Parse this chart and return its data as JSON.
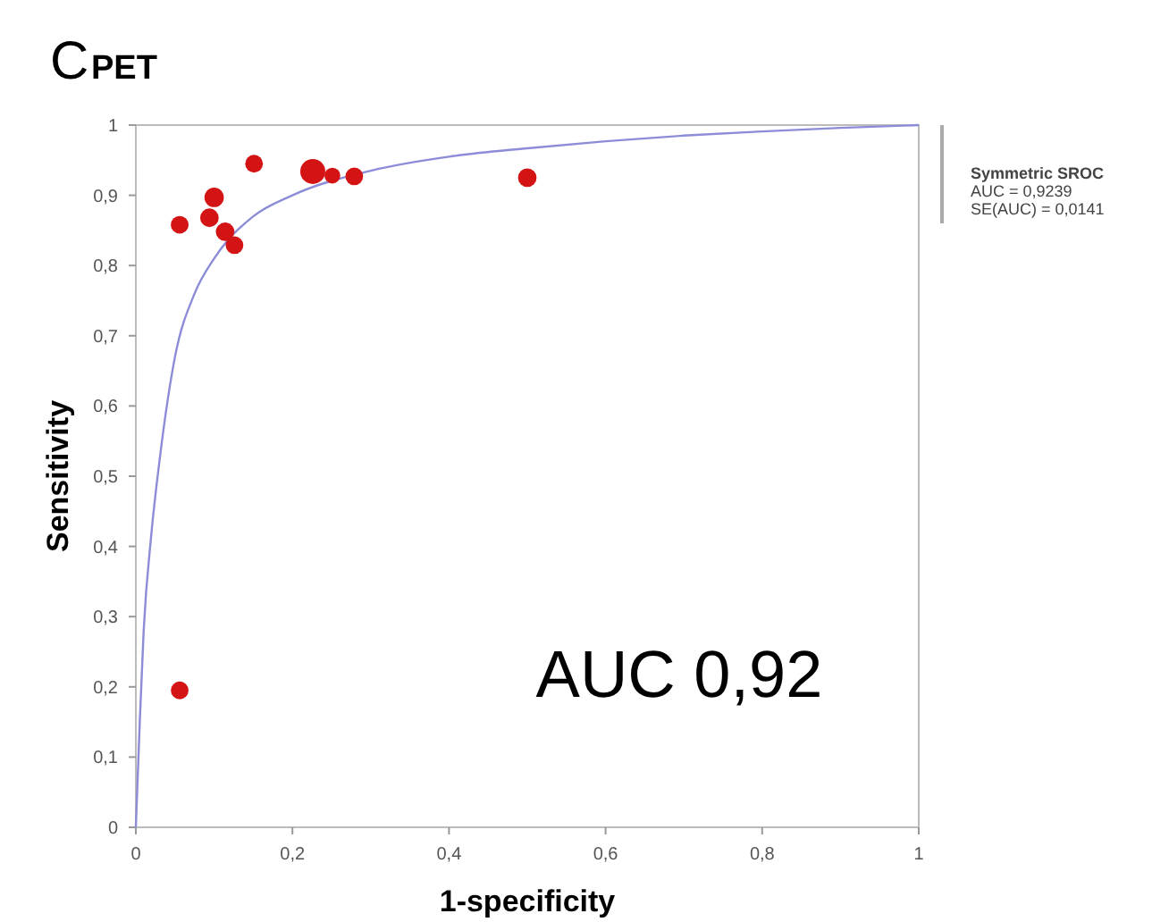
{
  "chart_data": {
    "type": "bubble",
    "title": "C",
    "subtitle": "PET",
    "xlabel": "1-specificity",
    "ylabel": "Sensitivity",
    "xlim": [
      0,
      1
    ],
    "ylim": [
      0,
      1
    ],
    "xticks": [
      0,
      {
        "value": 0.2,
        "label": "0,2"
      },
      {
        "value": 0.4,
        "label": "0,4"
      },
      {
        "value": 0.6,
        "label": "0,6"
      },
      {
        "value": 0.8,
        "label": "0,8"
      },
      1
    ],
    "yticks": [
      0,
      {
        "value": 0.1,
        "label": "0,1"
      },
      {
        "value": 0.2,
        "label": "0,2"
      },
      {
        "value": 0.3,
        "label": "0,3"
      },
      {
        "value": 0.4,
        "label": "0,4"
      },
      {
        "value": 0.5,
        "label": "0,5"
      },
      {
        "value": 0.6,
        "label": "0,6"
      },
      {
        "value": 0.7,
        "label": "0,7"
      },
      {
        "value": 0.8,
        "label": "0,8"
      },
      {
        "value": 0.9,
        "label": "0,9"
      },
      1
    ],
    "series": [
      {
        "type": "bubble",
        "color": "#d41414",
        "x": [
          0.056,
          0.094,
          0.1,
          0.114,
          0.126,
          0.151,
          0.226,
          0.251,
          0.279,
          0.5,
          0.056
        ],
        "values": [
          0.858,
          0.868,
          0.897,
          0.848,
          0.829,
          0.945,
          0.934,
          0.928,
          0.927,
          0.925,
          0.195
        ],
        "sizes": [
          0.5,
          0.55,
          0.6,
          0.55,
          0.5,
          0.5,
          1,
          0.4,
          0.5,
          0.55,
          0.5
        ]
      },
      {
        "type": "line",
        "color": "#8c8cd8",
        "x": [
          0,
          0.005,
          0.01,
          0.02,
          0.03,
          0.05,
          0.075,
          0.1,
          0.15,
          0.2,
          0.3,
          0.4,
          0.5,
          0.6,
          0.7,
          0.8,
          0.9,
          1
        ],
        "values": [
          0,
          0.15,
          0.28,
          0.42,
          0.52,
          0.67,
          0.76,
          0.81,
          0.87,
          0.9,
          0.935,
          0.955,
          0.967,
          0.977,
          0.985,
          0.991,
          0.996,
          1
        ]
      }
    ],
    "annotations": [
      "Symmetric SROC",
      "AUC = 0,9239",
      "SE(AUC) = 0,0141",
      "AUC 0,92"
    ],
    "grid": false
  }
}
